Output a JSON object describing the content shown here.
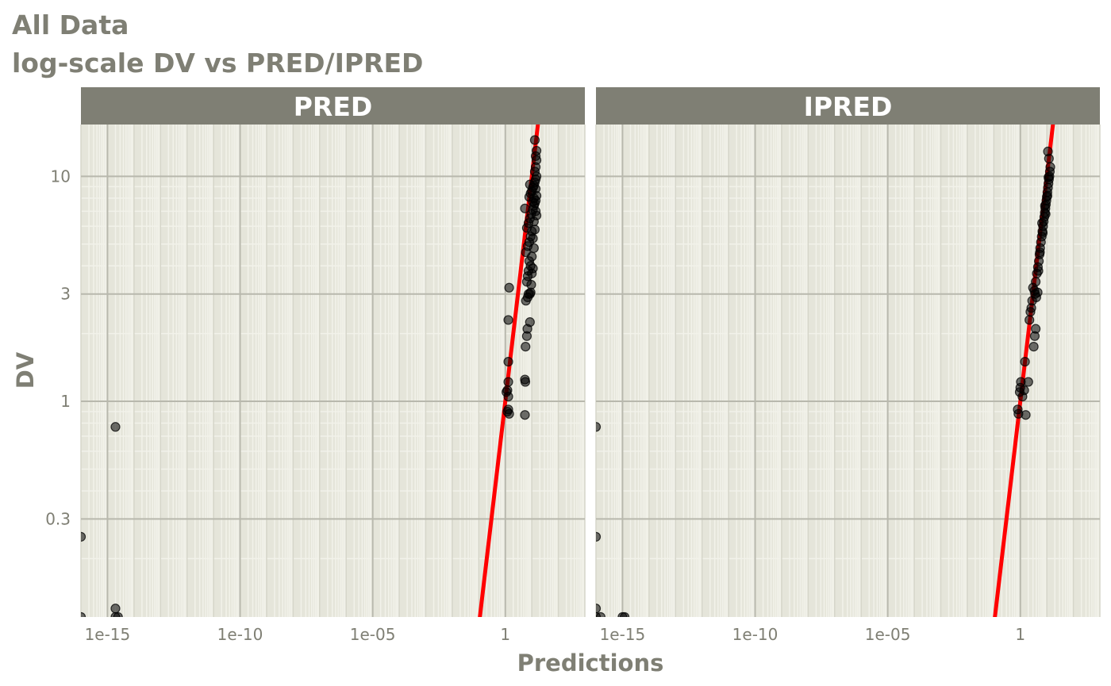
{
  "title": "All Data",
  "subtitle": "log-scale DV vs PRED/IPRED",
  "colors": {
    "panel_bg": "#e5e5da",
    "grid_major": "#b8b8ad",
    "grid_minor": "#f2f2ea",
    "strip_bg": "#7f7f74",
    "text": "#7f7f74",
    "points": "#000000",
    "line": "#ff0000"
  },
  "chart_data": {
    "type": "scatter",
    "xlabel": "Predictions",
    "ylabel": "DV",
    "x_scale": "log10",
    "y_scale": "log10",
    "xlim": [
      1e-16,
      1000.0
    ],
    "ylim": [
      0.11,
      17
    ],
    "x_ticks": [
      {
        "value": 1e-15,
        "label": "1e-15"
      },
      {
        "value": 1e-10,
        "label": "1e-10"
      },
      {
        "value": 1e-05,
        "label": "1e-05"
      },
      {
        "value": 1,
        "label": "1"
      }
    ],
    "y_ticks": [
      {
        "value": 0.3,
        "label": "0.3"
      },
      {
        "value": 1,
        "label": "1"
      },
      {
        "value": 3,
        "label": "3"
      },
      {
        "value": 10,
        "label": "10"
      }
    ],
    "reference_line": {
      "type": "identity",
      "slope": 1,
      "intercept": 0,
      "color": "#ff0000"
    },
    "panels": [
      {
        "name": "PRED",
        "points": [
          [
            1e-16,
            0.25
          ],
          [
            2e-15,
            0.77
          ],
          [
            2e-15,
            0.12
          ],
          [
            1e-16,
            0.11
          ],
          [
            2e-15,
            0.11
          ],
          [
            2.5e-15,
            0.11
          ],
          [
            1.1,
            1.1
          ],
          [
            1.2,
            1.12
          ],
          [
            1.3,
            1.22
          ],
          [
            1.3,
            1.5
          ],
          [
            1.3,
            2.3
          ],
          [
            1.4,
            3.2
          ],
          [
            1.3,
            1.05
          ],
          [
            1.3,
            0.92
          ],
          [
            1.4,
            0.88
          ],
          [
            1.2,
            0.9
          ],
          [
            5.5,
            0.87
          ],
          [
            5.5,
            1.25
          ],
          [
            5.7,
            1.22
          ],
          [
            5.8,
            1.75
          ],
          [
            6.5,
            1.95
          ],
          [
            6.8,
            2.1
          ],
          [
            8.5,
            2.25
          ],
          [
            6.0,
            2.8
          ],
          [
            7.0,
            2.9
          ],
          [
            7.5,
            3.0
          ],
          [
            8.5,
            3.0
          ],
          [
            9.0,
            3.05
          ],
          [
            6.5,
            3.4
          ],
          [
            7.0,
            3.6
          ],
          [
            7.5,
            3.8
          ],
          [
            8.0,
            4.2
          ],
          [
            9.0,
            4.0
          ],
          [
            6.0,
            4.6
          ],
          [
            7.0,
            4.9
          ],
          [
            8.0,
            5.1
          ],
          [
            9.0,
            5.4
          ],
          [
            10,
            5.7
          ],
          [
            6.5,
            5.9
          ],
          [
            7.5,
            6.2
          ],
          [
            8.5,
            6.5
          ],
          [
            9.5,
            6.8
          ],
          [
            11,
            7.1
          ],
          [
            5.5,
            7.2
          ],
          [
            12,
            7.4
          ],
          [
            13,
            7.6
          ],
          [
            14,
            7.8
          ],
          [
            8.0,
            8.1
          ],
          [
            9.0,
            8.4
          ],
          [
            10,
            8.6
          ],
          [
            11,
            8.9
          ],
          [
            12,
            9.1
          ],
          [
            13,
            9.4
          ],
          [
            14,
            9.7
          ],
          [
            15,
            10.0
          ],
          [
            8.5,
            9.2
          ],
          [
            13,
            10.5
          ],
          [
            14,
            11.0
          ],
          [
            15,
            11.8
          ],
          [
            14,
            12.3
          ],
          [
            15,
            13.0
          ],
          [
            13,
            14.5
          ],
          [
            14,
            7.0
          ],
          [
            15,
            6.7
          ],
          [
            12,
            6.3
          ],
          [
            13,
            5.8
          ],
          [
            11,
            5.3
          ],
          [
            12,
            4.8
          ],
          [
            10,
            4.4
          ],
          [
            11,
            3.9
          ],
          [
            10,
            3.7
          ],
          [
            9.5,
            3.3
          ],
          [
            12,
            8.0
          ],
          [
            11,
            7.7
          ],
          [
            15,
            8.2
          ],
          [
            14,
            8.8
          ]
        ]
      },
      {
        "name": "IPRED",
        "points": [
          [
            1e-16,
            0.77
          ],
          [
            1e-16,
            0.25
          ],
          [
            1e-16,
            0.12
          ],
          [
            1e-16,
            0.11
          ],
          [
            1.5e-16,
            0.11
          ],
          [
            1e-15,
            0.11
          ],
          [
            1.2e-15,
            0.11
          ],
          [
            0.8,
            0.92
          ],
          [
            0.85,
            0.88
          ],
          [
            0.95,
            1.1
          ],
          [
            1.0,
            1.15
          ],
          [
            1.05,
            1.22
          ],
          [
            1.2,
            1.05
          ],
          [
            1.4,
            1.12
          ],
          [
            1.5,
            1.5
          ],
          [
            1.6,
            0.87
          ],
          [
            2.0,
            1.22
          ],
          [
            2.2,
            2.3
          ],
          [
            2.4,
            2.5
          ],
          [
            2.8,
            2.8
          ],
          [
            3.2,
            1.75
          ],
          [
            3.5,
            1.95
          ],
          [
            3.8,
            2.1
          ],
          [
            3.0,
            3.2
          ],
          [
            3.6,
            3.0
          ],
          [
            4.0,
            2.9
          ],
          [
            4.5,
            3.05
          ],
          [
            3.8,
            3.4
          ],
          [
            4.2,
            3.7
          ],
          [
            4.6,
            3.95
          ],
          [
            5.0,
            4.2
          ],
          [
            5.3,
            4.5
          ],
          [
            5.6,
            4.8
          ],
          [
            6.0,
            5.1
          ],
          [
            6.4,
            5.4
          ],
          [
            6.8,
            5.7
          ],
          [
            7.2,
            6.0
          ],
          [
            7.6,
            6.3
          ],
          [
            8.0,
            6.6
          ],
          [
            8.4,
            6.9
          ],
          [
            8.8,
            7.2
          ],
          [
            9.2,
            7.5
          ],
          [
            9.6,
            7.8
          ],
          [
            10,
            8.1
          ],
          [
            10.5,
            8.5
          ],
          [
            11,
            8.9
          ],
          [
            11.5,
            9.3
          ],
          [
            12,
            9.7
          ],
          [
            12.5,
            10.0
          ],
          [
            13,
            10.5
          ],
          [
            13.5,
            11.0
          ],
          [
            12,
            12.0
          ],
          [
            11,
            12.9
          ],
          [
            10.5,
            8.2
          ],
          [
            9.0,
            6.8
          ],
          [
            7.0,
            5.6
          ],
          [
            5.5,
            4.6
          ],
          [
            4.8,
            3.8
          ],
          [
            3.4,
            3.1
          ],
          [
            2.6,
            2.6
          ],
          [
            8.5,
            7.4
          ],
          [
            6.6,
            6.2
          ],
          [
            11.5,
            9.9
          ]
        ]
      }
    ]
  }
}
